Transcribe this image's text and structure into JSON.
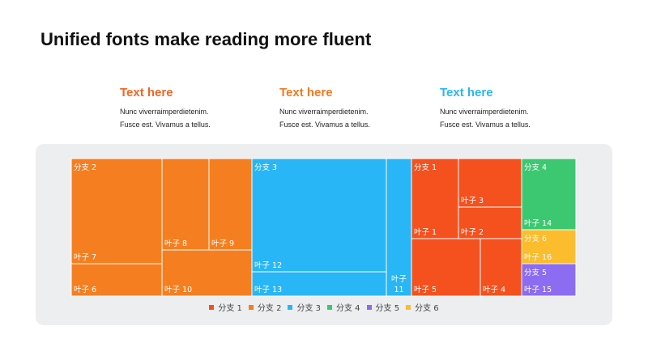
{
  "title": "Unified fonts make reading more fluent",
  "columns": [
    {
      "heading": "Text here",
      "color": "#f26522",
      "line1": "Nunc viverraimperdietenim.",
      "line2": "Fusce est. Vivamus a tellus."
    },
    {
      "heading": "Text here",
      "color": "#f47a20",
      "line1": "Nunc viverraimperdietenim.",
      "line2": "Fusce est. Vivamus a tellus."
    },
    {
      "heading": "Text here",
      "color": "#29b6f6",
      "line1": "Nunc viverraimperdietenim.",
      "line2": "Fusce est. Vivamus a tellus."
    }
  ],
  "chart_data": {
    "type": "treemap",
    "branches": [
      {
        "name": "分支 1",
        "color": "#f4511e"
      },
      {
        "name": "分支 2",
        "color": "#f57f20"
      },
      {
        "name": "分支 3",
        "color": "#29b6f6"
      },
      {
        "name": "分支 4",
        "color": "#3cc870"
      },
      {
        "name": "分支 5",
        "color": "#8c6cf0"
      },
      {
        "name": "分支 6",
        "color": "#fbbc2e"
      }
    ],
    "leaves": [
      {
        "label": "叶子 7",
        "branch_label": "分支 2",
        "branch": 2
      },
      {
        "label": "叶子 6",
        "branch": 2
      },
      {
        "label": "叶子 8",
        "branch": 2
      },
      {
        "label": "叶子 9",
        "branch": 2
      },
      {
        "label": "叶子 10",
        "branch": 2
      },
      {
        "label": "叶子 12",
        "branch_label": "分支 3",
        "branch": 3
      },
      {
        "label": "叶子 13",
        "branch": 3
      },
      {
        "label": "叶子 11",
        "branch": 3
      },
      {
        "label": "叶子 1",
        "branch_label": "分支 1",
        "branch": 1
      },
      {
        "label": "叶子 3",
        "branch": 1
      },
      {
        "label": "叶子 2",
        "branch": 1
      },
      {
        "label": "叶子 5",
        "branch": 1
      },
      {
        "label": "叶子 4",
        "branch": 1
      },
      {
        "label": "叶子 14",
        "branch_label": "分支 4",
        "branch": 4
      },
      {
        "label": "叶子 16",
        "branch_label": "分支 6",
        "branch": 6
      },
      {
        "label": "叶子 15",
        "branch_label": "分支 5",
        "branch": 5
      }
    ],
    "legend_placement": "bottom"
  }
}
